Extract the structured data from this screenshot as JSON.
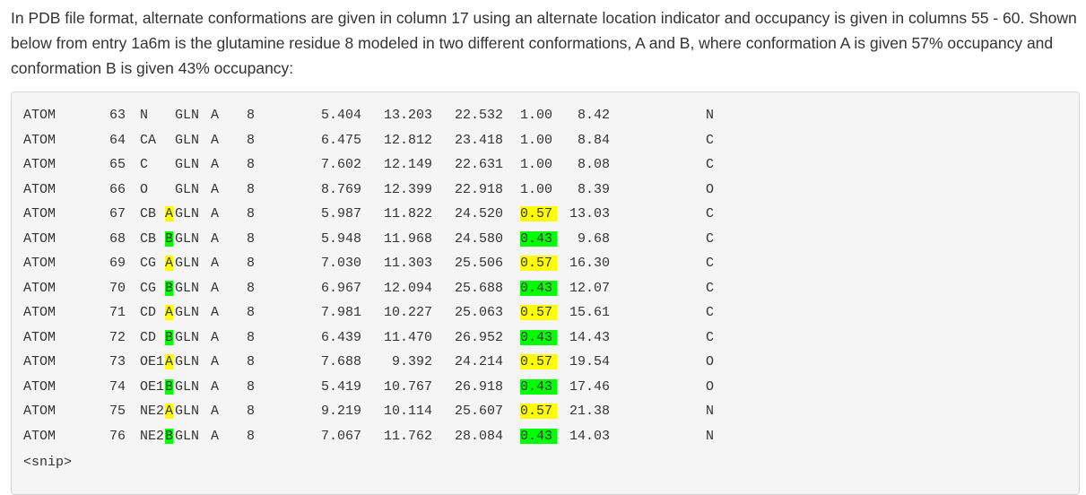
{
  "intro_text": "In PDB file format, alternate conformations are given in column 17 using an alternate location indicator and occupancy is given in columns 55 - 60. Shown below from entry 1a6m is the glutamine residue 8 modeled in two different conformations, A and B, where conformation A is given 57% occupancy and conformation B is given 43% occupancy:",
  "highlight_colors": {
    "A": "#ffff00",
    "B": "#00ff00"
  },
  "rows": [
    {
      "record": "ATOM",
      "serial": "63",
      "name": "N",
      "alt": "",
      "resname": "GLN",
      "chain": "A",
      "seq": "8",
      "x": "5.404",
      "y": "13.203",
      "z": "22.532",
      "occ": "1.00",
      "b": "8.42",
      "element": "N"
    },
    {
      "record": "ATOM",
      "serial": "64",
      "name": "CA",
      "alt": "",
      "resname": "GLN",
      "chain": "A",
      "seq": "8",
      "x": "6.475",
      "y": "12.812",
      "z": "23.418",
      "occ": "1.00",
      "b": "8.84",
      "element": "C"
    },
    {
      "record": "ATOM",
      "serial": "65",
      "name": "C",
      "alt": "",
      "resname": "GLN",
      "chain": "A",
      "seq": "8",
      "x": "7.602",
      "y": "12.149",
      "z": "22.631",
      "occ": "1.00",
      "b": "8.08",
      "element": "C"
    },
    {
      "record": "ATOM",
      "serial": "66",
      "name": "O",
      "alt": "",
      "resname": "GLN",
      "chain": "A",
      "seq": "8",
      "x": "8.769",
      "y": "12.399",
      "z": "22.918",
      "occ": "1.00",
      "b": "8.39",
      "element": "O"
    },
    {
      "record": "ATOM",
      "serial": "67",
      "name": "CB",
      "alt": "A",
      "resname": "GLN",
      "chain": "A",
      "seq": "8",
      "x": "5.987",
      "y": "11.822",
      "z": "24.520",
      "occ": "0.57",
      "b": "13.03",
      "element": "C"
    },
    {
      "record": "ATOM",
      "serial": "68",
      "name": "CB",
      "alt": "B",
      "resname": "GLN",
      "chain": "A",
      "seq": "8",
      "x": "5.948",
      "y": "11.968",
      "z": "24.580",
      "occ": "0.43",
      "b": "9.68",
      "element": "C"
    },
    {
      "record": "ATOM",
      "serial": "69",
      "name": "CG",
      "alt": "A",
      "resname": "GLN",
      "chain": "A",
      "seq": "8",
      "x": "7.030",
      "y": "11.303",
      "z": "25.506",
      "occ": "0.57",
      "b": "16.30",
      "element": "C"
    },
    {
      "record": "ATOM",
      "serial": "70",
      "name": "CG",
      "alt": "B",
      "resname": "GLN",
      "chain": "A",
      "seq": "8",
      "x": "6.967",
      "y": "12.094",
      "z": "25.688",
      "occ": "0.43",
      "b": "12.07",
      "element": "C"
    },
    {
      "record": "ATOM",
      "serial": "71",
      "name": "CD",
      "alt": "A",
      "resname": "GLN",
      "chain": "A",
      "seq": "8",
      "x": "7.981",
      "y": "10.227",
      "z": "25.063",
      "occ": "0.57",
      "b": "15.61",
      "element": "C"
    },
    {
      "record": "ATOM",
      "serial": "72",
      "name": "CD",
      "alt": "B",
      "resname": "GLN",
      "chain": "A",
      "seq": "8",
      "x": "6.439",
      "y": "11.470",
      "z": "26.952",
      "occ": "0.43",
      "b": "14.43",
      "element": "C"
    },
    {
      "record": "ATOM",
      "serial": "73",
      "name": "OE1",
      "alt": "A",
      "resname": "GLN",
      "chain": "A",
      "seq": "8",
      "x": "7.688",
      "y": "9.392",
      "z": "24.214",
      "occ": "0.57",
      "b": "19.54",
      "element": "O"
    },
    {
      "record": "ATOM",
      "serial": "74",
      "name": "OE1",
      "alt": "B",
      "resname": "GLN",
      "chain": "A",
      "seq": "8",
      "x": "5.419",
      "y": "10.767",
      "z": "26.918",
      "occ": "0.43",
      "b": "17.46",
      "element": "O"
    },
    {
      "record": "ATOM",
      "serial": "75",
      "name": "NE2",
      "alt": "A",
      "resname": "GLN",
      "chain": "A",
      "seq": "8",
      "x": "9.219",
      "y": "10.114",
      "z": "25.607",
      "occ": "0.57",
      "b": "21.38",
      "element": "N"
    },
    {
      "record": "ATOM",
      "serial": "76",
      "name": "NE2",
      "alt": "B",
      "resname": "GLN",
      "chain": "A",
      "seq": "8",
      "x": "7.067",
      "y": "11.762",
      "z": "28.084",
      "occ": "0.43",
      "b": "14.03",
      "element": "N"
    }
  ],
  "snip_text": "<snip>"
}
